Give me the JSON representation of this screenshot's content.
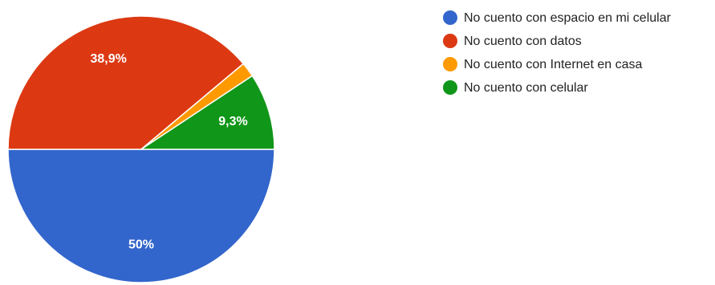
{
  "chart_data": {
    "type": "pie",
    "title": "",
    "slices": [
      {
        "label": "No cuento con espacio en mi celular",
        "value": 50,
        "display": "50%",
        "color": "#3366cc"
      },
      {
        "label": "No cuento con datos",
        "value": 38.9,
        "display": "38,9%",
        "color": "#dc3912"
      },
      {
        "label": "No cuento con Internet en casa",
        "value": 1.8,
        "display": "",
        "color": "#ff9900"
      },
      {
        "label": "No cuento con celular",
        "value": 9.3,
        "display": "9,3%",
        "color": "#109618"
      }
    ],
    "legend_position": "right"
  }
}
